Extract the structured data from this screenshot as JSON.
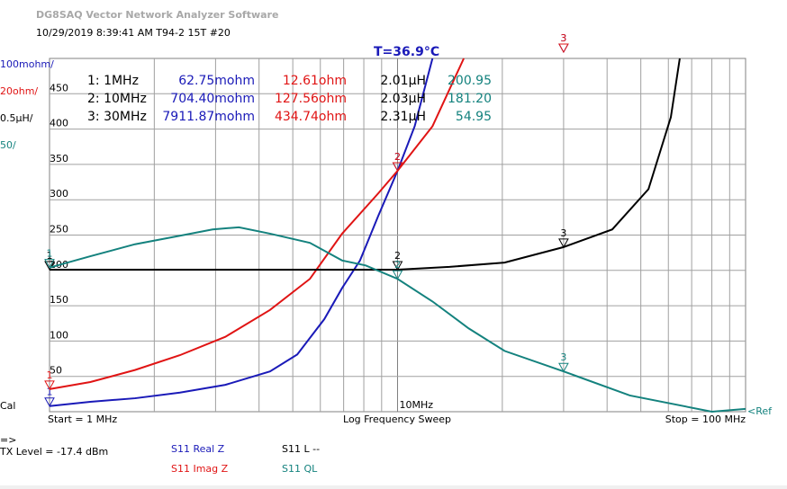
{
  "app_title": "DG8SAQ Vector Network Analyzer Software",
  "info": "10/29/2019  8:39:41 AM    T94-2 15T #20",
  "temperature": "T=36.9°C",
  "marker_table": [
    [
      "1: 1MHz",
      "62.75mohm",
      "12.61ohm",
      "2.01µH",
      "200.95"
    ],
    [
      "2: 10MHz",
      "704.40mohm",
      "127.56ohm",
      "2.03µH",
      "181.20"
    ],
    [
      "3: 30MHz",
      "7911.87mohm",
      "434.74ohm",
      "2.31µH",
      "54.95"
    ]
  ],
  "footer": {
    "start": "Start = 1 MHz",
    "sweep": "Log Frequency Sweep",
    "stop": "Stop = 100 MHz",
    "cal": "Cal",
    "ref": "<Ref",
    "arrow": "=>",
    "tx": "TX Level = -17.4 dBm"
  },
  "chart_data": {
    "type": "line",
    "x_log": true,
    "grid": true,
    "xlim": [
      1,
      100
    ],
    "ylim": [
      0,
      500
    ],
    "xticks": [
      {
        "value": 10,
        "label": "10MHz"
      }
    ],
    "yticks": [
      50,
      100,
      150,
      200,
      250,
      300,
      350,
      400,
      450
    ],
    "markers": [
      {
        "label": "1",
        "x": 1
      },
      {
        "label": "2",
        "x": 10
      },
      {
        "label": "3",
        "x": 30
      }
    ],
    "series": [
      {
        "name": "S11  Real Z",
        "scale": "100mohm/",
        "color": "#1a1ab8",
        "x": [
          1,
          1.31,
          1.76,
          2.37,
          3.2,
          4.3,
          5.15,
          6.16,
          6.93,
          7.8,
          8.8,
          10,
          11.2,
          12.6
        ],
        "values": [
          8,
          14,
          19,
          27,
          38,
          57,
          81,
          131,
          175,
          214,
          277,
          341,
          404,
          500
        ]
      },
      {
        "name": "S11  Imag Z",
        "scale": "20ohm/",
        "color": "#e01414",
        "x": [
          1,
          1.31,
          1.76,
          2.37,
          3.2,
          4.3,
          5.6,
          6.93,
          8.8,
          10,
          12.6,
          15.5
        ],
        "values": [
          32,
          42,
          59,
          80,
          106,
          144,
          188,
          252,
          309,
          341,
          404,
          500
        ]
      },
      {
        "name": "S11  L --",
        "scale": "0.5µH/",
        "color": "#000000",
        "x": [
          1,
          10,
          14.1,
          20.3,
          30,
          41.4,
          52.6,
          61,
          64.7
        ],
        "values": [
          201,
          201,
          205,
          211,
          233,
          258,
          315,
          417,
          500
        ]
      },
      {
        "name": "S11  QL",
        "scale": "50/",
        "color": "#14827e",
        "x": [
          1,
          1.31,
          1.76,
          2.37,
          2.94,
          3.5,
          4.3,
          5.6,
          6.93,
          8.1,
          10,
          12.6,
          16,
          20.3,
          30,
          46.5,
          80,
          100
        ],
        "values": [
          204,
          220,
          237,
          249,
          258,
          261,
          252,
          239,
          214,
          207,
          188,
          156,
          118,
          86,
          57,
          23,
          0,
          4
        ]
      }
    ]
  }
}
